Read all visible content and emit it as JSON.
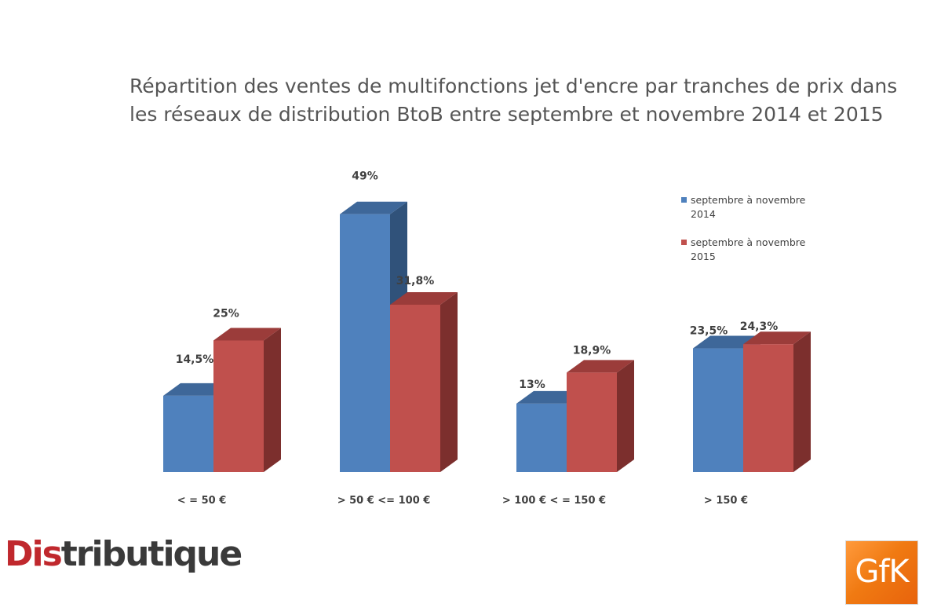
{
  "title_line1": "Répartition des ventes de multifonctions jet d'encre par tranches de prix dans",
  "title_line2": "les réseaux de distribution BtoB entre septembre et novembre 2014 et 2015",
  "chart_data": {
    "type": "bar",
    "categories": [
      "< = 50 €",
      "> 50 € <= 100 €",
      "> 100 € < = 150 €",
      "> 150 €"
    ],
    "series": [
      {
        "name": "septembre à novembre 2014",
        "legend_line1": "septembre à novembre",
        "legend_line2": "2014",
        "values": [
          14.5,
          49,
          13,
          23.5
        ],
        "labels": [
          "14,5%",
          "49%",
          "13%",
          "23,5%"
        ],
        "color": "#4f81bd",
        "side_color": "#30527a",
        "top_color": "#3e6799"
      },
      {
        "name": "septembre à novembre 2015",
        "legend_line1": "septembre à novembre",
        "legend_line2": "2015",
        "values": [
          25,
          31.8,
          18.9,
          24.3
        ],
        "labels": [
          "25%",
          "31,8%",
          "18,9%",
          "24,3%"
        ],
        "color": "#c0504d",
        "side_color": "#7c2f2d",
        "top_color": "#9b3c3a"
      }
    ],
    "ylim": [
      0,
      50
    ],
    "grid": false,
    "legend_position": "top-right"
  },
  "logos": {
    "distributique_prefix": "Dis",
    "distributique_rest": "tributique",
    "gfk": "GfK"
  }
}
